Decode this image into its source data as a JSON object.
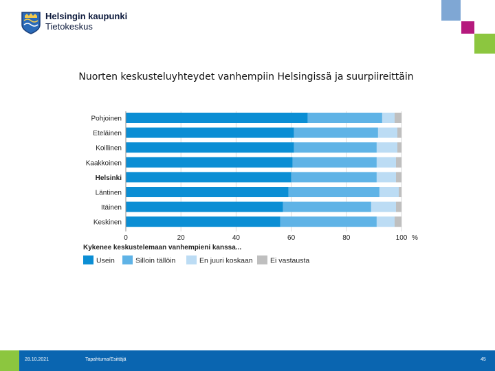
{
  "header": {
    "org_name": "Helsingin kaupunki",
    "dept_name": "Tietokeskus"
  },
  "slide": {
    "title": "Nuorten keskusteluyhteydet vanhempiin Helsingissä ja suurpiireittäin"
  },
  "footer": {
    "date": "28.10.2021",
    "event": "Tapahtuma/Esittäjä",
    "page_number": "45"
  },
  "colors": {
    "accent_blue": "#0a65b0",
    "accent_green": "#8cc63f",
    "accent_pink": "#b5197d",
    "accent_lightblue": "#7fa7d4"
  },
  "chart_data": {
    "type": "bar",
    "orientation": "horizontal",
    "stacked": true,
    "categories": [
      "Pohjoinen",
      "Eteläinen",
      "Koillinen",
      "Kaakkoinen",
      "Helsinki",
      "Läntinen",
      "Itäinen",
      "Keskinen"
    ],
    "bold_categories": [
      "Helsinki"
    ],
    "series": [
      {
        "name": "Usein",
        "color": "#0b8ed4",
        "values": [
          66,
          61,
          61,
          60.5,
          60,
          59,
          57,
          56
        ]
      },
      {
        "name": "Silloin tällöin",
        "color": "#5fb3e6",
        "values": [
          27,
          30.5,
          30,
          30.5,
          31,
          33,
          32,
          35
        ]
      },
      {
        "name": "En juuri koskaan",
        "color": "#bcdcf4",
        "values": [
          4.5,
          7,
          7.5,
          7,
          7,
          7,
          9,
          6.5
        ]
      },
      {
        "name": "Ei vastausta",
        "color": "#bfbfbf",
        "values": [
          2.5,
          1.5,
          1.5,
          2,
          2,
          1,
          2,
          2.5
        ]
      }
    ],
    "xlim": [
      0,
      100
    ],
    "xticks": [
      0,
      20,
      40,
      60,
      80,
      100
    ],
    "xunit": "%",
    "gridlines": true,
    "legend_title": "Kykenee keskustelemaan vanhempieni kanssa...",
    "legend_position": "bottom"
  }
}
